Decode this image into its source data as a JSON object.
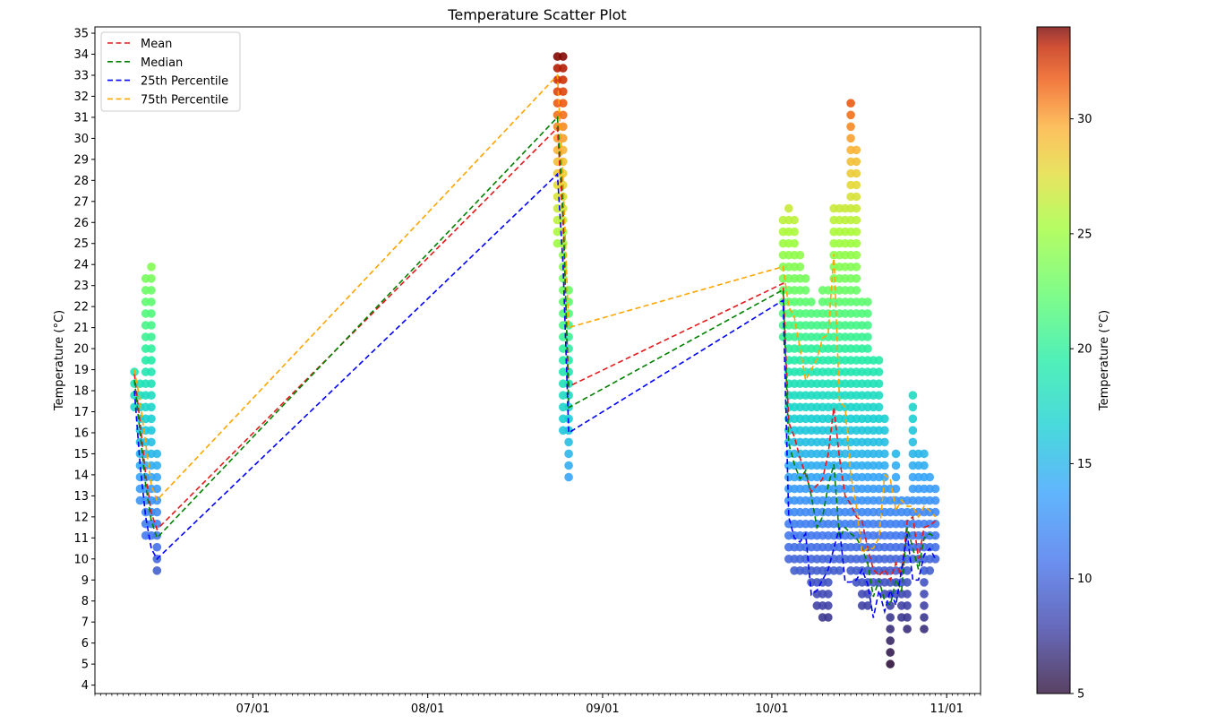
{
  "chart_data": {
    "type": "scatter",
    "title": "Temperature Scatter Plot",
    "xlabel": "",
    "ylabel": "Temperature (°C)",
    "y_ticks": [
      4,
      5,
      6,
      7,
      8,
      9,
      10,
      11,
      12,
      13,
      14,
      15,
      16,
      17,
      18,
      19,
      20,
      21,
      22,
      23,
      24,
      25,
      26,
      27,
      28,
      29,
      30,
      31,
      32,
      33,
      34,
      35
    ],
    "ylim": [
      3.6,
      35.3
    ],
    "x_ticks": [
      {
        "label": "07/01",
        "date": "2000-07-01"
      },
      {
        "label": "08/01",
        "date": "2000-08-01"
      },
      {
        "label": "09/01",
        "date": "2000-09-01"
      },
      {
        "label": "10/01",
        "date": "2000-10-01"
      },
      {
        "label": "11/01",
        "date": "2000-11-01"
      }
    ],
    "xlim": [
      "2000-06-03",
      "2000-11-07"
    ],
    "grid": false,
    "legend_placement": "top-left",
    "colorbar": {
      "label": "Temperature (°C)",
      "range": [
        5,
        34
      ],
      "ticks": [
        5,
        10,
        15,
        20,
        25,
        30
      ],
      "colormap": "jet"
    },
    "scatter_clusters": [
      {
        "date": "2000-06-10",
        "min": 17.2,
        "max": 19.0
      },
      {
        "date": "2000-06-11",
        "min": 12.8,
        "max": 18.4
      },
      {
        "date": "2000-06-12",
        "min": 11.1,
        "max": 23.3
      },
      {
        "date": "2000-06-13",
        "min": 11.1,
        "max": 23.9
      },
      {
        "date": "2000-06-14",
        "min": 9.4,
        "max": 15.0
      },
      {
        "date": "2000-08-24",
        "min": 25.0,
        "max": 34.0
      },
      {
        "date": "2000-08-25",
        "min": 16.1,
        "max": 34.0
      },
      {
        "date": "2000-08-26",
        "min": 13.9,
        "max": 22.8
      },
      {
        "date": "2000-10-03",
        "min": 20.6,
        "max": 26.1
      },
      {
        "date": "2000-10-04",
        "min": 10.0,
        "max": 26.7
      },
      {
        "date": "2000-10-05",
        "min": 9.4,
        "max": 26.1
      },
      {
        "date": "2000-10-06",
        "min": 9.4,
        "max": 24.4
      },
      {
        "date": "2000-10-07",
        "min": 9.4,
        "max": 23.3
      },
      {
        "date": "2000-10-08",
        "min": 8.9,
        "max": 22.2
      },
      {
        "date": "2000-10-09",
        "min": 7.8,
        "max": 21.7
      },
      {
        "date": "2000-10-10",
        "min": 7.2,
        "max": 22.8
      },
      {
        "date": "2000-10-11",
        "min": 7.2,
        "max": 22.8
      },
      {
        "date": "2000-10-12",
        "min": 9.4,
        "max": 26.7
      },
      {
        "date": "2000-10-13",
        "min": 9.4,
        "max": 26.7
      },
      {
        "date": "2000-10-14",
        "min": 10.0,
        "max": 26.7
      },
      {
        "date": "2000-10-15",
        "min": 9.4,
        "max": 31.7
      },
      {
        "date": "2000-10-16",
        "min": 8.9,
        "max": 29.4
      },
      {
        "date": "2000-10-17",
        "min": 7.8,
        "max": 22.2
      },
      {
        "date": "2000-10-18",
        "min": 7.8,
        "max": 22.2
      },
      {
        "date": "2000-10-19",
        "min": 8.9,
        "max": 19.4
      },
      {
        "date": "2000-10-20",
        "min": 8.9,
        "max": 19.4
      },
      {
        "date": "2000-10-21",
        "min": 8.3,
        "max": 16.7
      },
      {
        "date": "2000-10-22",
        "min": 5.0,
        "max": 13.3
      },
      {
        "date": "2000-10-23",
        "min": 8.3,
        "max": 15.0
      },
      {
        "date": "2000-10-24",
        "min": 7.2,
        "max": 12.8
      },
      {
        "date": "2000-10-25",
        "min": 6.7,
        "max": 12.8
      },
      {
        "date": "2000-10-26",
        "min": 10.0,
        "max": 17.8
      },
      {
        "date": "2000-10-27",
        "min": 10.0,
        "max": 15.0
      },
      {
        "date": "2000-10-28",
        "min": 6.7,
        "max": 15.0
      },
      {
        "date": "2000-10-29",
        "min": 9.4,
        "max": 13.9
      },
      {
        "date": "2000-10-30",
        "min": 10.0,
        "max": 13.3
      }
    ],
    "x": [
      "2000-06-10",
      "2000-06-11",
      "2000-06-12",
      "2000-06-13",
      "2000-06-14",
      "2000-08-24",
      "2000-08-25",
      "2000-08-26",
      "2000-10-03",
      "2000-10-04",
      "2000-10-05",
      "2000-10-06",
      "2000-10-07",
      "2000-10-08",
      "2000-10-09",
      "2000-10-10",
      "2000-10-11",
      "2000-10-12",
      "2000-10-13",
      "2000-10-14",
      "2000-10-15",
      "2000-10-16",
      "2000-10-17",
      "2000-10-18",
      "2000-10-19",
      "2000-10-20",
      "2000-10-21",
      "2000-10-22",
      "2000-10-23",
      "2000-10-24",
      "2000-10-25",
      "2000-10-26",
      "2000-10-27",
      "2000-10-28",
      "2000-10-29",
      "2000-10-30"
    ],
    "series": [
      {
        "name": "Mean",
        "color": "#e41a1c",
        "style": "dashed",
        "values": [
          18.8,
          16.5,
          14.0,
          12.2,
          11.4,
          30.5,
          26.0,
          18.2,
          23.1,
          16.5,
          15.8,
          14.8,
          14.0,
          13.2,
          13.5,
          13.8,
          15.0,
          17.2,
          14.8,
          13.0,
          12.6,
          12.0,
          11.8,
          10.5,
          9.5,
          9.2,
          9.5,
          9.0,
          9.8,
          9.2,
          11.8,
          12.0,
          10.0,
          11.5,
          11.6,
          11.8
        ]
      },
      {
        "name": "Median",
        "color": "#008000",
        "style": "dashed",
        "values": [
          18.5,
          16.0,
          13.5,
          11.8,
          11.0,
          31.0,
          27.0,
          17.2,
          22.8,
          15.5,
          14.5,
          13.8,
          14.2,
          13.0,
          11.5,
          12.0,
          13.5,
          14.5,
          11.0,
          11.5,
          11.2,
          11.0,
          10.5,
          9.8,
          8.2,
          9.0,
          8.0,
          7.8,
          9.0,
          8.5,
          11.5,
          10.5,
          9.5,
          11.0,
          11.2,
          11.0
        ]
      },
      {
        "name": "25th Percentile",
        "color": "#0000ff",
        "style": "dashed",
        "values": [
          18.0,
          14.5,
          12.0,
          10.5,
          10.0,
          28.3,
          24.0,
          16.0,
          22.3,
          12.0,
          11.0,
          10.8,
          11.2,
          8.3,
          8.5,
          9.0,
          9.5,
          10.5,
          11.5,
          8.9,
          8.9,
          9.0,
          9.5,
          8.8,
          7.2,
          8.5,
          7.5,
          8.5,
          7.8,
          9.5,
          11.2,
          9.0,
          9.0,
          10.2,
          10.5,
          10.0
        ]
      },
      {
        "name": "75th Percentile",
        "color": "#ffa500",
        "style": "dashed",
        "values": [
          19.0,
          17.5,
          15.5,
          13.5,
          12.8,
          33.0,
          28.0,
          21.0,
          23.9,
          22.0,
          21.5,
          20.0,
          18.5,
          19.0,
          19.5,
          20.5,
          20.7,
          24.5,
          17.5,
          17.2,
          14.0,
          12.5,
          10.3,
          10.5,
          10.5,
          11.0,
          14.0,
          13.8,
          12.3,
          12.8,
          12.5,
          12.5,
          12.0,
          12.5,
          12.3,
          12.0
        ]
      }
    ]
  }
}
